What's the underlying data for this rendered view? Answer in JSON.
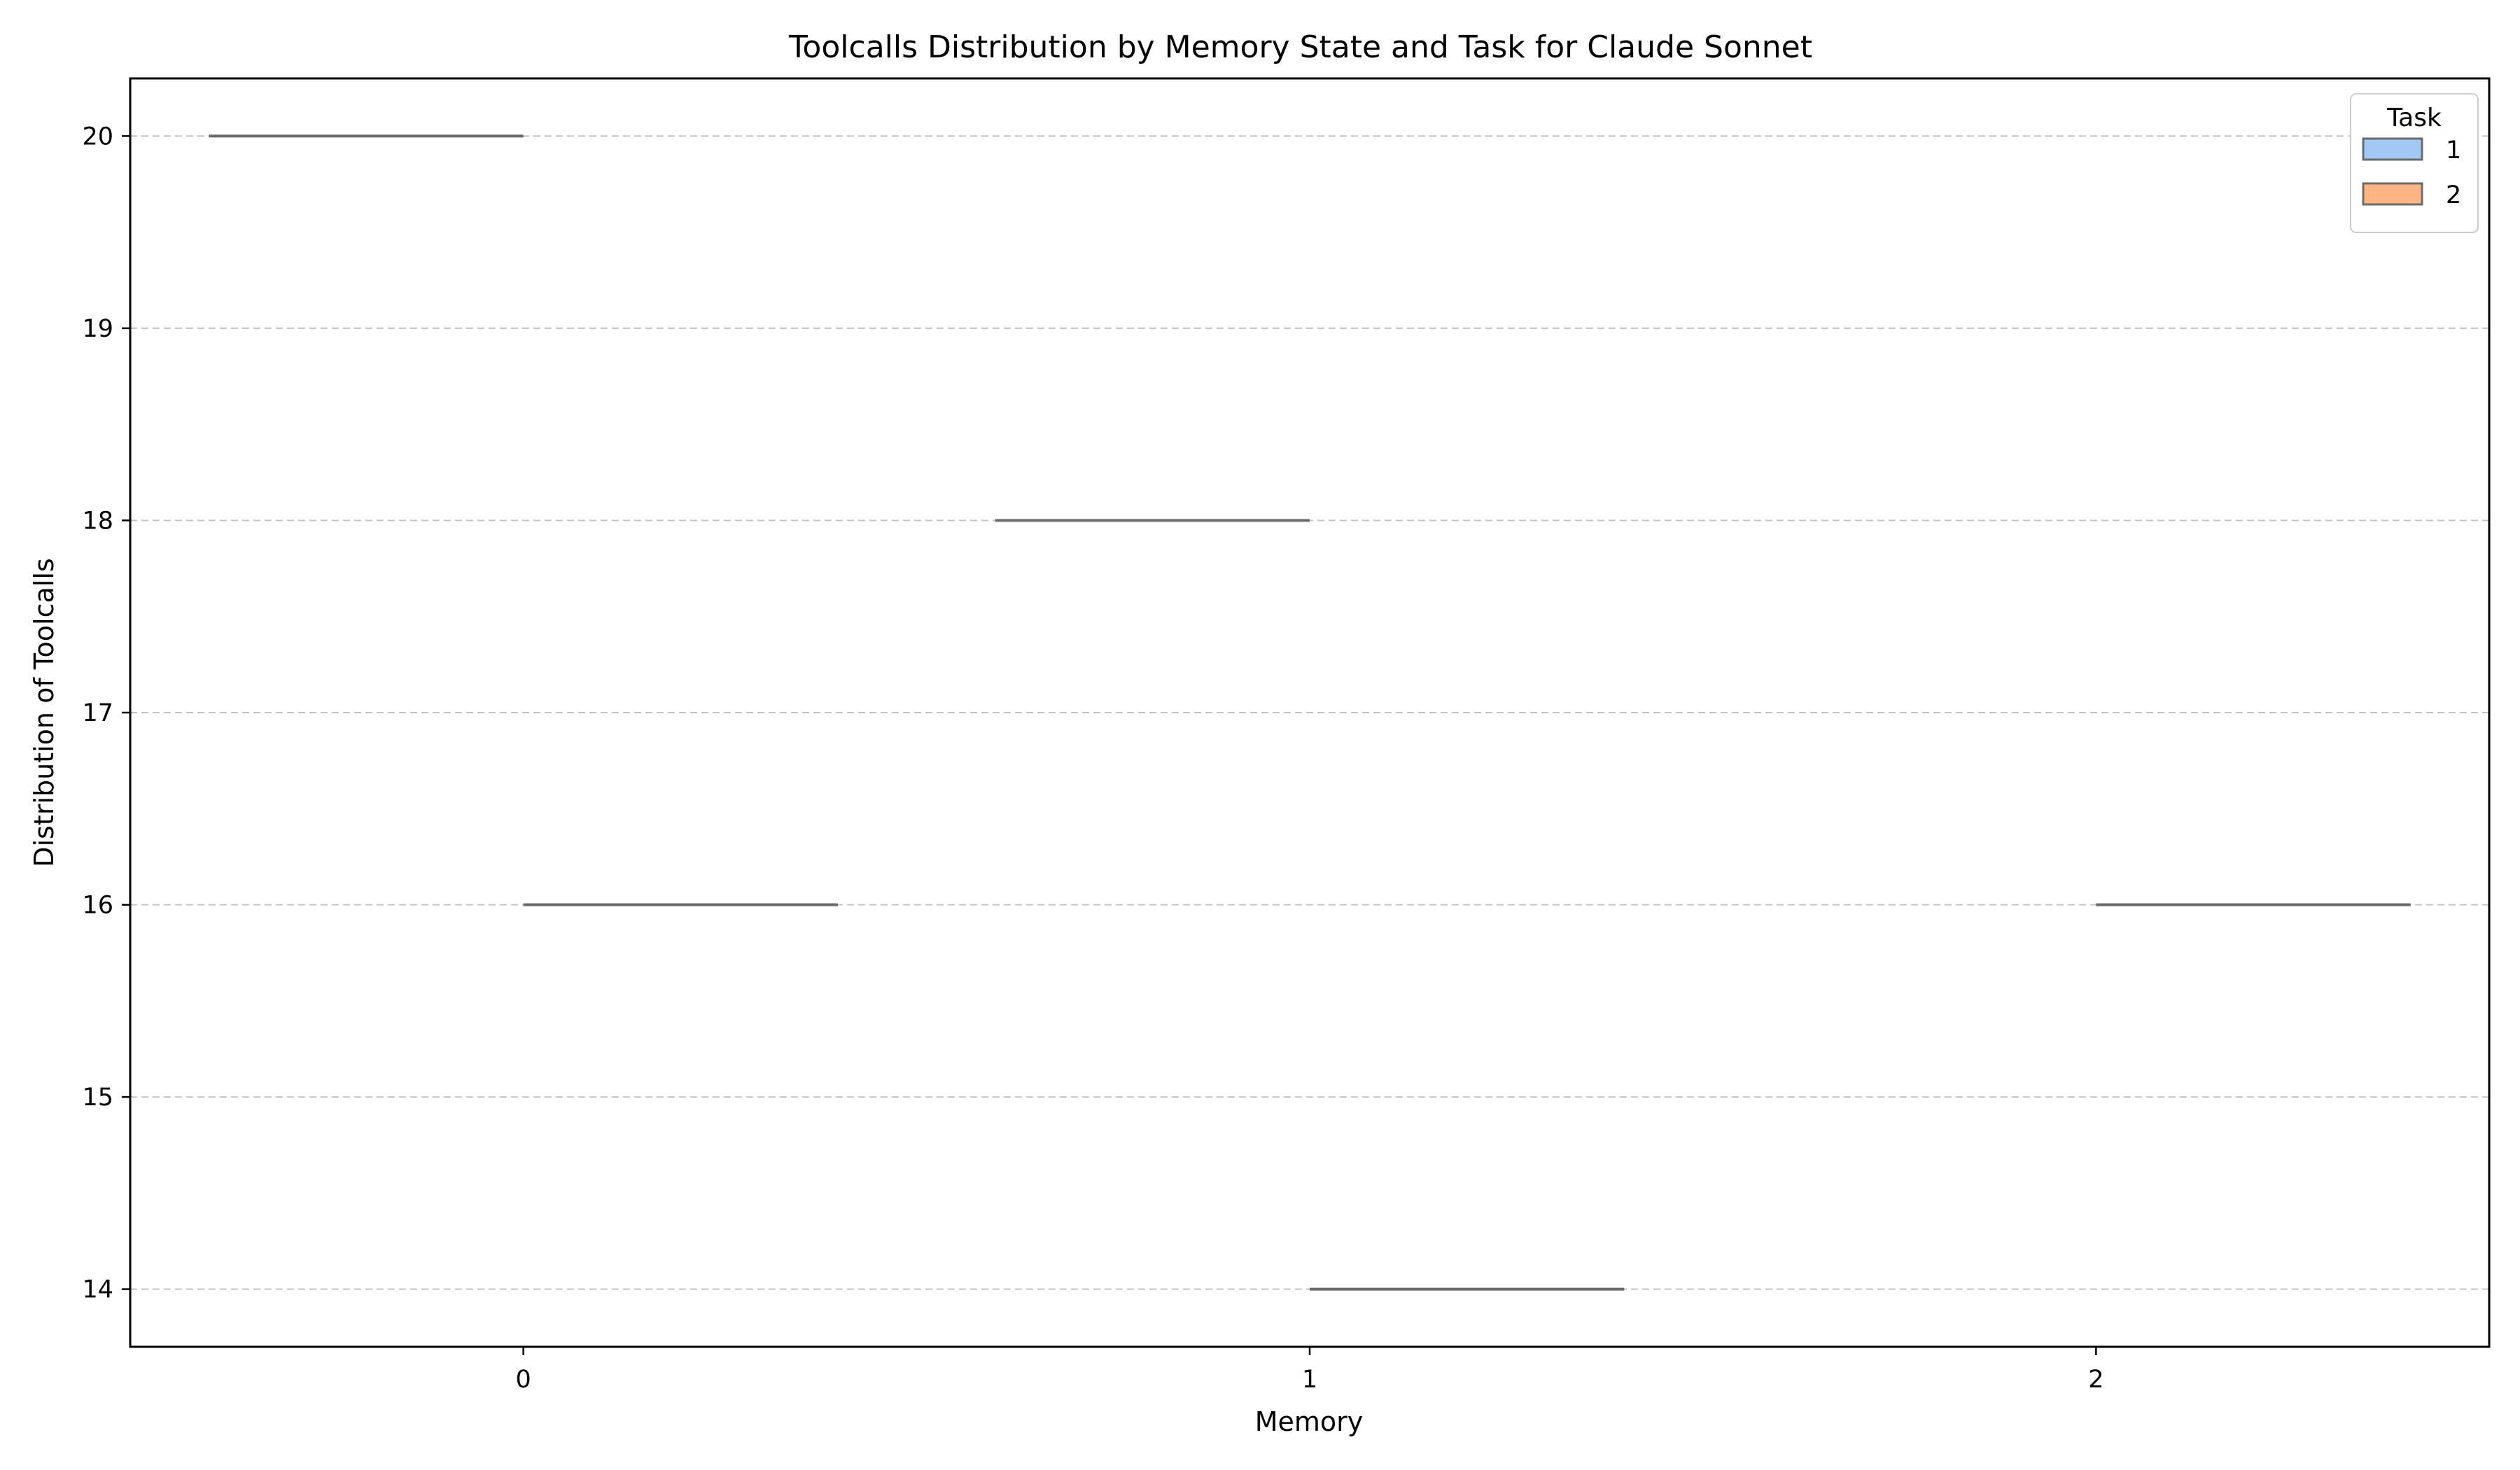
{
  "chart_data": {
    "type": "violin",
    "title": "Toolcalls Distribution by Memory State and Task for Claude Sonnet",
    "xlabel": "Memory",
    "ylabel": "Distribution of Toolcalls",
    "categories": [
      "0",
      "1",
      "2"
    ],
    "y_ticks": [
      14,
      15,
      16,
      17,
      18,
      19,
      20
    ],
    "ylim": [
      13.7,
      20.3
    ],
    "grid": "horizontal dashed",
    "legend": {
      "title": "Task",
      "placement": "top-right"
    },
    "series": [
      {
        "name": "1",
        "color": "#a1c9f4",
        "values": [
          20,
          18,
          null
        ]
      },
      {
        "name": "2",
        "color": "#ffb482",
        "values": [
          16,
          14,
          16
        ]
      }
    ],
    "line_color": "#6b6b6b"
  }
}
